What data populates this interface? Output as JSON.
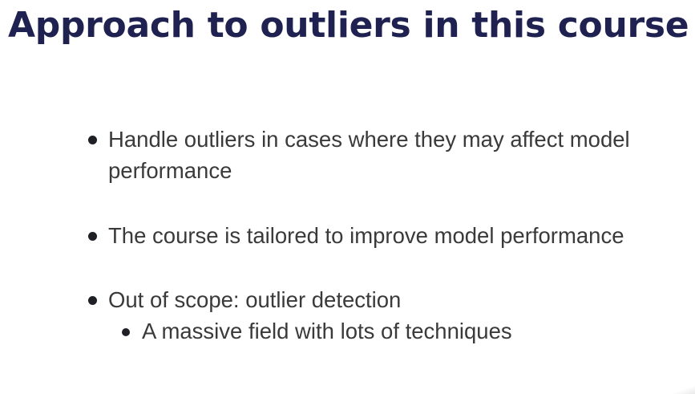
{
  "slide": {
    "title": "Approach to outliers in this course",
    "bullets": [
      {
        "text": "Handle outliers in cases where they may affect model performance"
      },
      {
        "text": "The course is tailored to improve model performance"
      },
      {
        "text": "Out of scope: outlier detection",
        "subbullets": [
          {
            "text": "A massive field with lots of techniques"
          }
        ]
      }
    ]
  },
  "colors": {
    "title": "#1f2151",
    "body_text": "#3a3a3a",
    "bullet_dot": "#1f2026",
    "background": "#ffffff"
  }
}
